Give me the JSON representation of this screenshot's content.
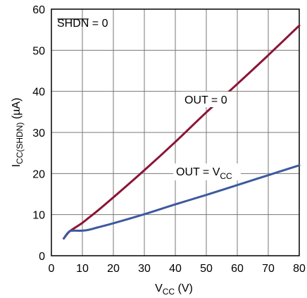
{
  "chart_data": {
    "type": "line",
    "xlabel": {
      "main": "V",
      "sub": "CC",
      "unit": " (V)"
    },
    "ylabel": {
      "main": "I",
      "sub": "CC(SHDN)",
      "unit": " (µA)"
    },
    "xlim": [
      0,
      80
    ],
    "ylim": [
      0,
      60
    ],
    "xticks": [
      "0",
      "10",
      "20",
      "30",
      "40",
      "50",
      "60",
      "70",
      "80"
    ],
    "yticks": [
      "0",
      "10",
      "20",
      "30",
      "40",
      "50",
      "60"
    ],
    "grid": true,
    "annotations": {
      "shdn": {
        "bar_text": "SHDN",
        "rest": " = 0"
      },
      "out0": "OUT = 0",
      "outvcc": {
        "main": "OUT = V",
        "sub": "CC"
      }
    },
    "series": [
      {
        "label": "OUT = 0",
        "color": "#8b1535",
        "x": [
          4,
          5,
          6,
          8,
          10,
          12,
          15,
          20,
          30,
          40,
          50,
          60,
          70,
          80
        ],
        "y": [
          4.2,
          5.2,
          6.0,
          7.0,
          8.0,
          9.2,
          11.0,
          14.2,
          20.8,
          27.7,
          34.9,
          41.8,
          48.8,
          56.0
        ]
      },
      {
        "label": "OUT = VCC",
        "color": "#3d5a9e",
        "x": [
          4,
          5,
          6,
          7,
          8,
          10,
          12,
          15,
          20,
          30,
          40,
          50,
          60,
          70,
          80
        ],
        "y": [
          4.2,
          5.3,
          6.0,
          6.1,
          6.1,
          6.1,
          6.3,
          6.9,
          7.9,
          10.1,
          12.5,
          14.8,
          17.2,
          19.6,
          22.0
        ]
      }
    ]
  }
}
